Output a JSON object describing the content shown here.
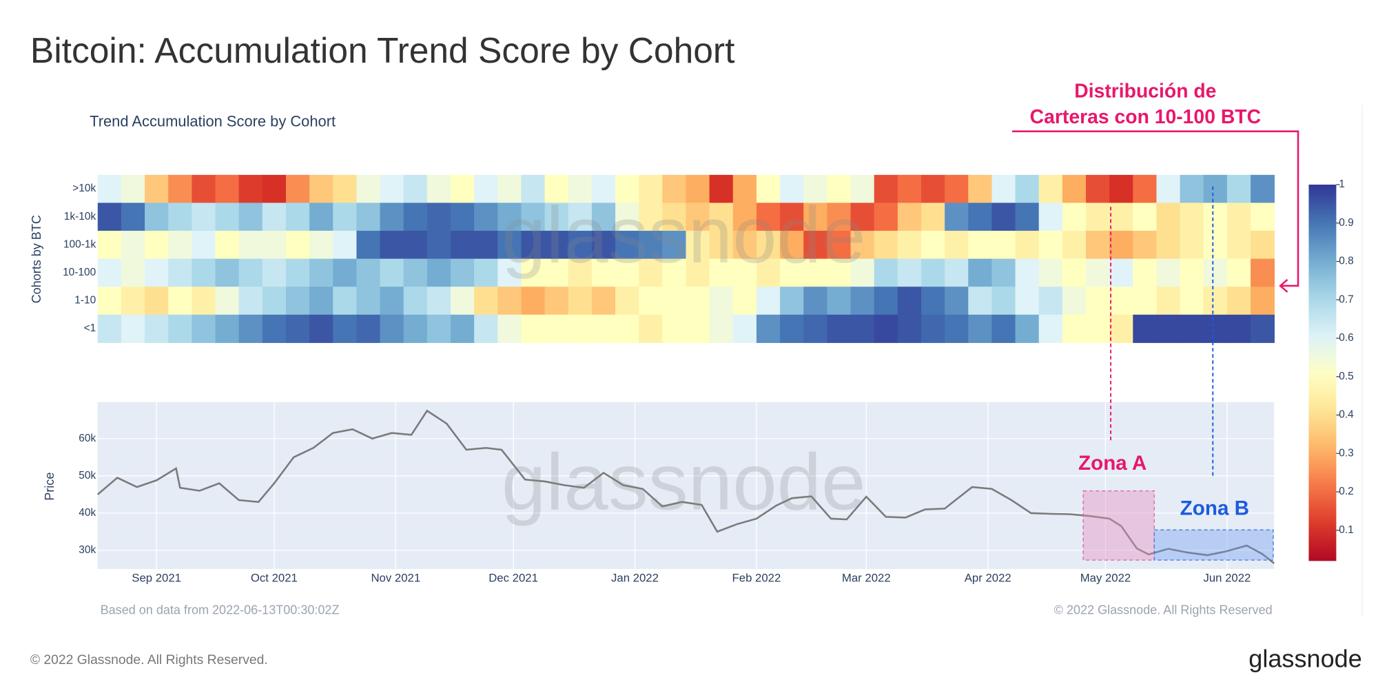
{
  "title": "Bitcoin: Accumulation Trend Score by Cohort",
  "watermark": "glassnode",
  "footer_left": "Based on data from 2022-06-13T00:30:02Z",
  "footer_right": "© 2022 Glassnode. All Rights Reserved",
  "copyright": "© 2022 Glassnode. All Rights Reserved.",
  "logo": "glassnode",
  "annotations": {
    "cohort_note": [
      "Distribución de",
      "Carteras con 10-100 BTC"
    ],
    "zone_a": "Zona A",
    "zone_b": "Zona B"
  },
  "chart_data": [
    {
      "type": "heatmap",
      "title": "Trend Accumulation Score by Cohort",
      "y_label": "Cohorts by BTC",
      "categories": [
        ">10k",
        "1k-10k",
        "100-1k",
        "10-100",
        "1-10",
        "<1"
      ],
      "xlim": [
        "2021-08-17",
        "2022-06-13"
      ],
      "zlim": [
        0.02,
        1
      ],
      "zticks": [
        0.1,
        0.2,
        0.3,
        0.4,
        0.5,
        0.6,
        0.7,
        0.8,
        0.9,
        1
      ],
      "colorscale": [
        "#a50026",
        "#d73027",
        "#f46d43",
        "#fdae61",
        "#fee090",
        "#ffffbf",
        "#e0f3f8",
        "#abd9e9",
        "#74add1",
        "#4575b4",
        "#313695"
      ],
      "z": [
        [
          0.6,
          0.55,
          0.35,
          0.25,
          0.15,
          0.2,
          0.12,
          0.1,
          0.25,
          0.35,
          0.4,
          0.55,
          0.6,
          0.65,
          0.55,
          0.5,
          0.6,
          0.55,
          0.65,
          0.5,
          0.55,
          0.6,
          0.5,
          0.45,
          0.35,
          0.3,
          0.1,
          0.3,
          0.5,
          0.6,
          0.55,
          0.5,
          0.55,
          0.15,
          0.2,
          0.15,
          0.2,
          0.35,
          0.6,
          0.7,
          0.45,
          0.3,
          0.15,
          0.1,
          0.2,
          0.6,
          0.75,
          0.8,
          0.7,
          0.85
        ],
        [
          0.95,
          0.9,
          0.75,
          0.7,
          0.65,
          0.7,
          0.75,
          0.65,
          0.7,
          0.8,
          0.7,
          0.75,
          0.85,
          0.9,
          0.92,
          0.9,
          0.85,
          0.8,
          0.75,
          0.7,
          0.65,
          0.75,
          0.55,
          0.45,
          0.4,
          0.35,
          0.4,
          0.3,
          0.2,
          0.15,
          0.3,
          0.25,
          0.15,
          0.2,
          0.35,
          0.4,
          0.85,
          0.9,
          0.95,
          0.9,
          0.6,
          0.5,
          0.45,
          0.45,
          0.5,
          0.4,
          0.45,
          0.5,
          0.45,
          0.5
        ],
        [
          0.5,
          0.55,
          0.5,
          0.55,
          0.6,
          0.5,
          0.55,
          0.55,
          0.5,
          0.55,
          0.6,
          0.9,
          0.95,
          0.95,
          0.92,
          0.95,
          0.95,
          0.9,
          0.95,
          0.95,
          0.92,
          0.95,
          0.9,
          0.88,
          0.85,
          0.45,
          0.4,
          0.35,
          0.4,
          0.3,
          0.15,
          0.2,
          0.35,
          0.4,
          0.45,
          0.5,
          0.45,
          0.5,
          0.5,
          0.45,
          0.5,
          0.45,
          0.35,
          0.3,
          0.35,
          0.4,
          0.45,
          0.5,
          0.45,
          0.4
        ],
        [
          0.6,
          0.55,
          0.6,
          0.65,
          0.7,
          0.75,
          0.7,
          0.65,
          0.7,
          0.75,
          0.8,
          0.75,
          0.7,
          0.75,
          0.8,
          0.75,
          0.7,
          0.6,
          0.5,
          0.5,
          0.45,
          0.5,
          0.5,
          0.45,
          0.5,
          0.45,
          0.5,
          0.5,
          0.45,
          0.5,
          0.5,
          0.5,
          0.55,
          0.7,
          0.65,
          0.7,
          0.65,
          0.8,
          0.75,
          0.6,
          0.55,
          0.5,
          0.55,
          0.6,
          0.5,
          0.55,
          0.5,
          0.55,
          0.5,
          0.25
        ],
        [
          0.5,
          0.45,
          0.4,
          0.5,
          0.45,
          0.55,
          0.65,
          0.7,
          0.75,
          0.8,
          0.7,
          0.75,
          0.8,
          0.7,
          0.65,
          0.55,
          0.4,
          0.35,
          0.3,
          0.35,
          0.4,
          0.35,
          0.45,
          0.5,
          0.5,
          0.5,
          0.55,
          0.5,
          0.6,
          0.75,
          0.85,
          0.8,
          0.85,
          0.9,
          0.95,
          0.9,
          0.85,
          0.65,
          0.7,
          0.6,
          0.65,
          0.55,
          0.5,
          0.5,
          0.5,
          0.45,
          0.5,
          0.45,
          0.4,
          0.3
        ],
        [
          0.65,
          0.6,
          0.65,
          0.7,
          0.75,
          0.8,
          0.85,
          0.9,
          0.92,
          0.95,
          0.9,
          0.92,
          0.85,
          0.8,
          0.75,
          0.8,
          0.65,
          0.55,
          0.5,
          0.5,
          0.5,
          0.5,
          0.5,
          0.45,
          0.5,
          0.5,
          0.55,
          0.6,
          0.85,
          0.9,
          0.92,
          0.95,
          0.95,
          0.97,
          0.95,
          0.92,
          0.9,
          0.85,
          0.9,
          0.8,
          0.6,
          0.5,
          0.5,
          0.45,
          0.97,
          0.97,
          0.97,
          0.97,
          0.97,
          0.95
        ]
      ]
    },
    {
      "type": "line",
      "y_label": "Price",
      "color": "#7a7a7a",
      "xlim": [
        "2021-08-17",
        "2022-06-13"
      ],
      "xticks": [
        {
          "value": "2021-09-01",
          "label": "Sep 2021"
        },
        {
          "value": "2021-10-01",
          "label": "Oct 2021"
        },
        {
          "value": "2021-11-01",
          "label": "Nov 2021"
        },
        {
          "value": "2021-12-01",
          "label": "Dec 2021"
        },
        {
          "value": "2022-01-01",
          "label": "Jan 2022"
        },
        {
          "value": "2022-02-01",
          "label": "Feb 2022"
        },
        {
          "value": "2022-03-01",
          "label": "Mar 2022"
        },
        {
          "value": "2022-04-01",
          "label": "Apr 2022"
        },
        {
          "value": "2022-05-01",
          "label": "May 2022"
        },
        {
          "value": "2022-06-01",
          "label": "Jun 2022"
        }
      ],
      "ylim": [
        25000,
        69800
      ],
      "yticks": [
        {
          "value": 30000,
          "label": "30k"
        },
        {
          "value": 40000,
          "label": "40k"
        },
        {
          "value": 50000,
          "label": "50k"
        },
        {
          "value": 60000,
          "label": "60k"
        }
      ],
      "grid": true,
      "x": [
        "2021-08-17",
        "2021-08-22",
        "2021-08-27",
        "2021-09-01",
        "2021-09-06",
        "2021-09-07",
        "2021-09-12",
        "2021-09-17",
        "2021-09-22",
        "2021-09-27",
        "2021-10-01",
        "2021-10-06",
        "2021-10-11",
        "2021-10-16",
        "2021-10-21",
        "2021-10-26",
        "2021-10-31",
        "2021-11-05",
        "2021-11-09",
        "2021-11-14",
        "2021-11-19",
        "2021-11-24",
        "2021-11-28",
        "2021-12-04",
        "2021-12-09",
        "2021-12-14",
        "2021-12-19",
        "2021-12-24",
        "2021-12-29",
        "2022-01-03",
        "2022-01-08",
        "2022-01-13",
        "2022-01-18",
        "2022-01-22",
        "2022-01-27",
        "2022-02-01",
        "2022-02-06",
        "2022-02-10",
        "2022-02-15",
        "2022-02-20",
        "2022-02-24",
        "2022-03-01",
        "2022-03-06",
        "2022-03-11",
        "2022-03-16",
        "2022-03-21",
        "2022-03-28",
        "2022-04-02",
        "2022-04-07",
        "2022-04-12",
        "2022-04-17",
        "2022-04-22",
        "2022-04-27",
        "2022-05-02",
        "2022-05-05",
        "2022-05-09",
        "2022-05-12",
        "2022-05-17",
        "2022-05-22",
        "2022-05-27",
        "2022-06-01",
        "2022-06-06",
        "2022-06-10",
        "2022-06-13"
      ],
      "values": [
        45000,
        49500,
        47000,
        48800,
        52000,
        46800,
        46000,
        48000,
        43500,
        43000,
        48000,
        55000,
        57500,
        61500,
        62500,
        60000,
        61500,
        61000,
        67500,
        64000,
        57000,
        57500,
        57000,
        49000,
        48500,
        47500,
        46800,
        50800,
        47500,
        46500,
        41800,
        43000,
        42200,
        35000,
        37000,
        38500,
        42000,
        44000,
        44500,
        38500,
        38300,
        44400,
        39000,
        38800,
        41000,
        41200,
        47000,
        46500,
        43500,
        40000,
        39800,
        39700,
        39200,
        38500,
        36500,
        30500,
        28900,
        30400,
        29400,
        28700,
        29800,
        31300,
        29000,
        26500
      ]
    }
  ]
}
